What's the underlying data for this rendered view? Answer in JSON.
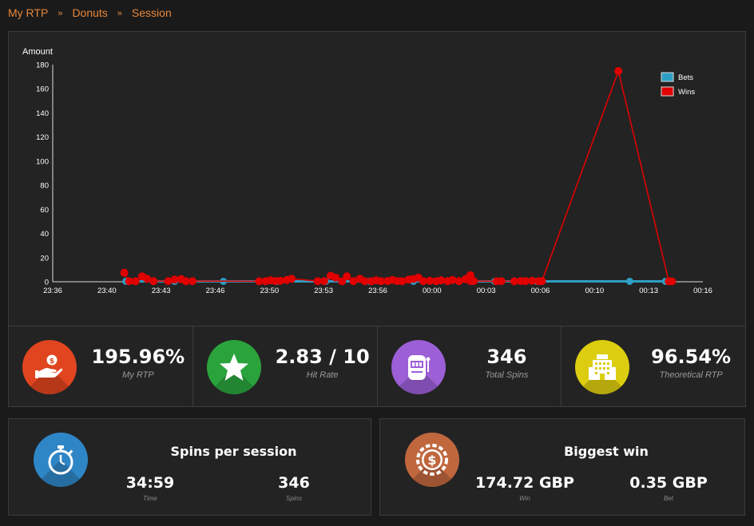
{
  "breadcrumb": {
    "items": [
      "My RTP",
      "Donuts",
      "Session"
    ],
    "separator": "»"
  },
  "chart_data": {
    "type": "line",
    "ylabel": "Amount",
    "ylim": [
      0,
      180
    ],
    "yticks": [
      0,
      20,
      40,
      60,
      80,
      100,
      120,
      140,
      160,
      180
    ],
    "xlim_minutes": [
      -24,
      16
    ],
    "xticks": [
      "23:36",
      "23:40",
      "23:43",
      "23:46",
      "23:50",
      "23:53",
      "23:56",
      "00:00",
      "00:03",
      "00:06",
      "00:10",
      "00:13",
      "00:16"
    ],
    "legend_position": "top-right",
    "grid": false,
    "series": [
      {
        "name": "Bets",
        "color": "#2e9fc4",
        "x": [
          -19.5,
          -16.5,
          -13.5,
          -10.2,
          -7.2,
          -4.5,
          -1.8,
          1.8,
          3.2,
          5.8,
          11.5,
          13.7
        ],
        "values": [
          0.35,
          0.35,
          0.35,
          0.35,
          0.35,
          0.35,
          0.35,
          0.35,
          0.35,
          0.35,
          0.35,
          0.35
        ]
      },
      {
        "name": "Wins",
        "color": "#e00000",
        "x": [
          -19.6,
          -19.3,
          -18.9,
          -18.5,
          -18.2,
          -17.8,
          -16.9,
          -16.5,
          -16.1,
          -15.8,
          -15.4,
          -11.3,
          -10.9,
          -10.6,
          -10.3,
          -10.0,
          -9.6,
          -9.3,
          -7.7,
          -7.3,
          -6.9,
          -6.6,
          -6.2,
          -5.9,
          -5.5,
          -5.1,
          -4.8,
          -4.4,
          -4.1,
          -3.8,
          -3.4,
          -3.1,
          -2.8,
          -2.5,
          -2.1,
          -1.8,
          -1.5,
          -1.2,
          -0.8,
          -0.4,
          -0.1,
          0.3,
          0.6,
          1.0,
          1.4,
          1.7,
          1.7,
          1.9,
          3.3,
          3.6,
          4.4,
          4.8,
          5.1,
          5.5,
          5.9,
          6.1,
          10.8,
          13.9,
          14.1
        ],
        "values": [
          7.5,
          0.4,
          0.4,
          4.5,
          2.5,
          0.5,
          0.5,
          1.8,
          2.2,
          0.4,
          0.5,
          0.4,
          0.5,
          1.2,
          0.6,
          0.8,
          1.5,
          2.5,
          0.5,
          0.5,
          5.0,
          3.5,
          0.4,
          4.5,
          0.5,
          2.5,
          0.5,
          0.4,
          1.2,
          0.5,
          0.6,
          1.5,
          0.6,
          0.5,
          1.8,
          2.3,
          3.5,
          0.5,
          0.8,
          0.5,
          1.2,
          0.5,
          1.5,
          0.5,
          2.2,
          5.5,
          0.6,
          0.6,
          0.4,
          0.5,
          0.4,
          0.6,
          0.5,
          0.8,
          0.4,
          0.5,
          174.72,
          0.4,
          0.35
        ]
      }
    ]
  },
  "stats": [
    {
      "value": "195.96%",
      "label": "My RTP",
      "color": "#e0451f",
      "icon": "hand-coin-icon"
    },
    {
      "value": "2.83 / 10",
      "label": "Hit Rate",
      "color": "#2aa33c",
      "icon": "star-icon"
    },
    {
      "value": "346",
      "label": "Total Spins",
      "color": "#9c5fd6",
      "icon": "slot-machine-icon"
    },
    {
      "value": "96.54%",
      "label": "Theoretical RTP",
      "color": "#dccd10",
      "icon": "building-icon"
    }
  ],
  "session_card": {
    "title": "Spins per session",
    "color": "#2f86c6",
    "icon": "stopwatch-icon",
    "time_value": "34:59",
    "time_label": "Time",
    "spins_value": "346",
    "spins_label": "Spins"
  },
  "win_card": {
    "title": "Biggest win",
    "color": "#c0673e",
    "icon": "casino-chip-dollar-icon",
    "win_value": "174.72 GBP",
    "win_label": "Win",
    "bet_value": "0.35 GBP",
    "bet_label": "Bet"
  }
}
